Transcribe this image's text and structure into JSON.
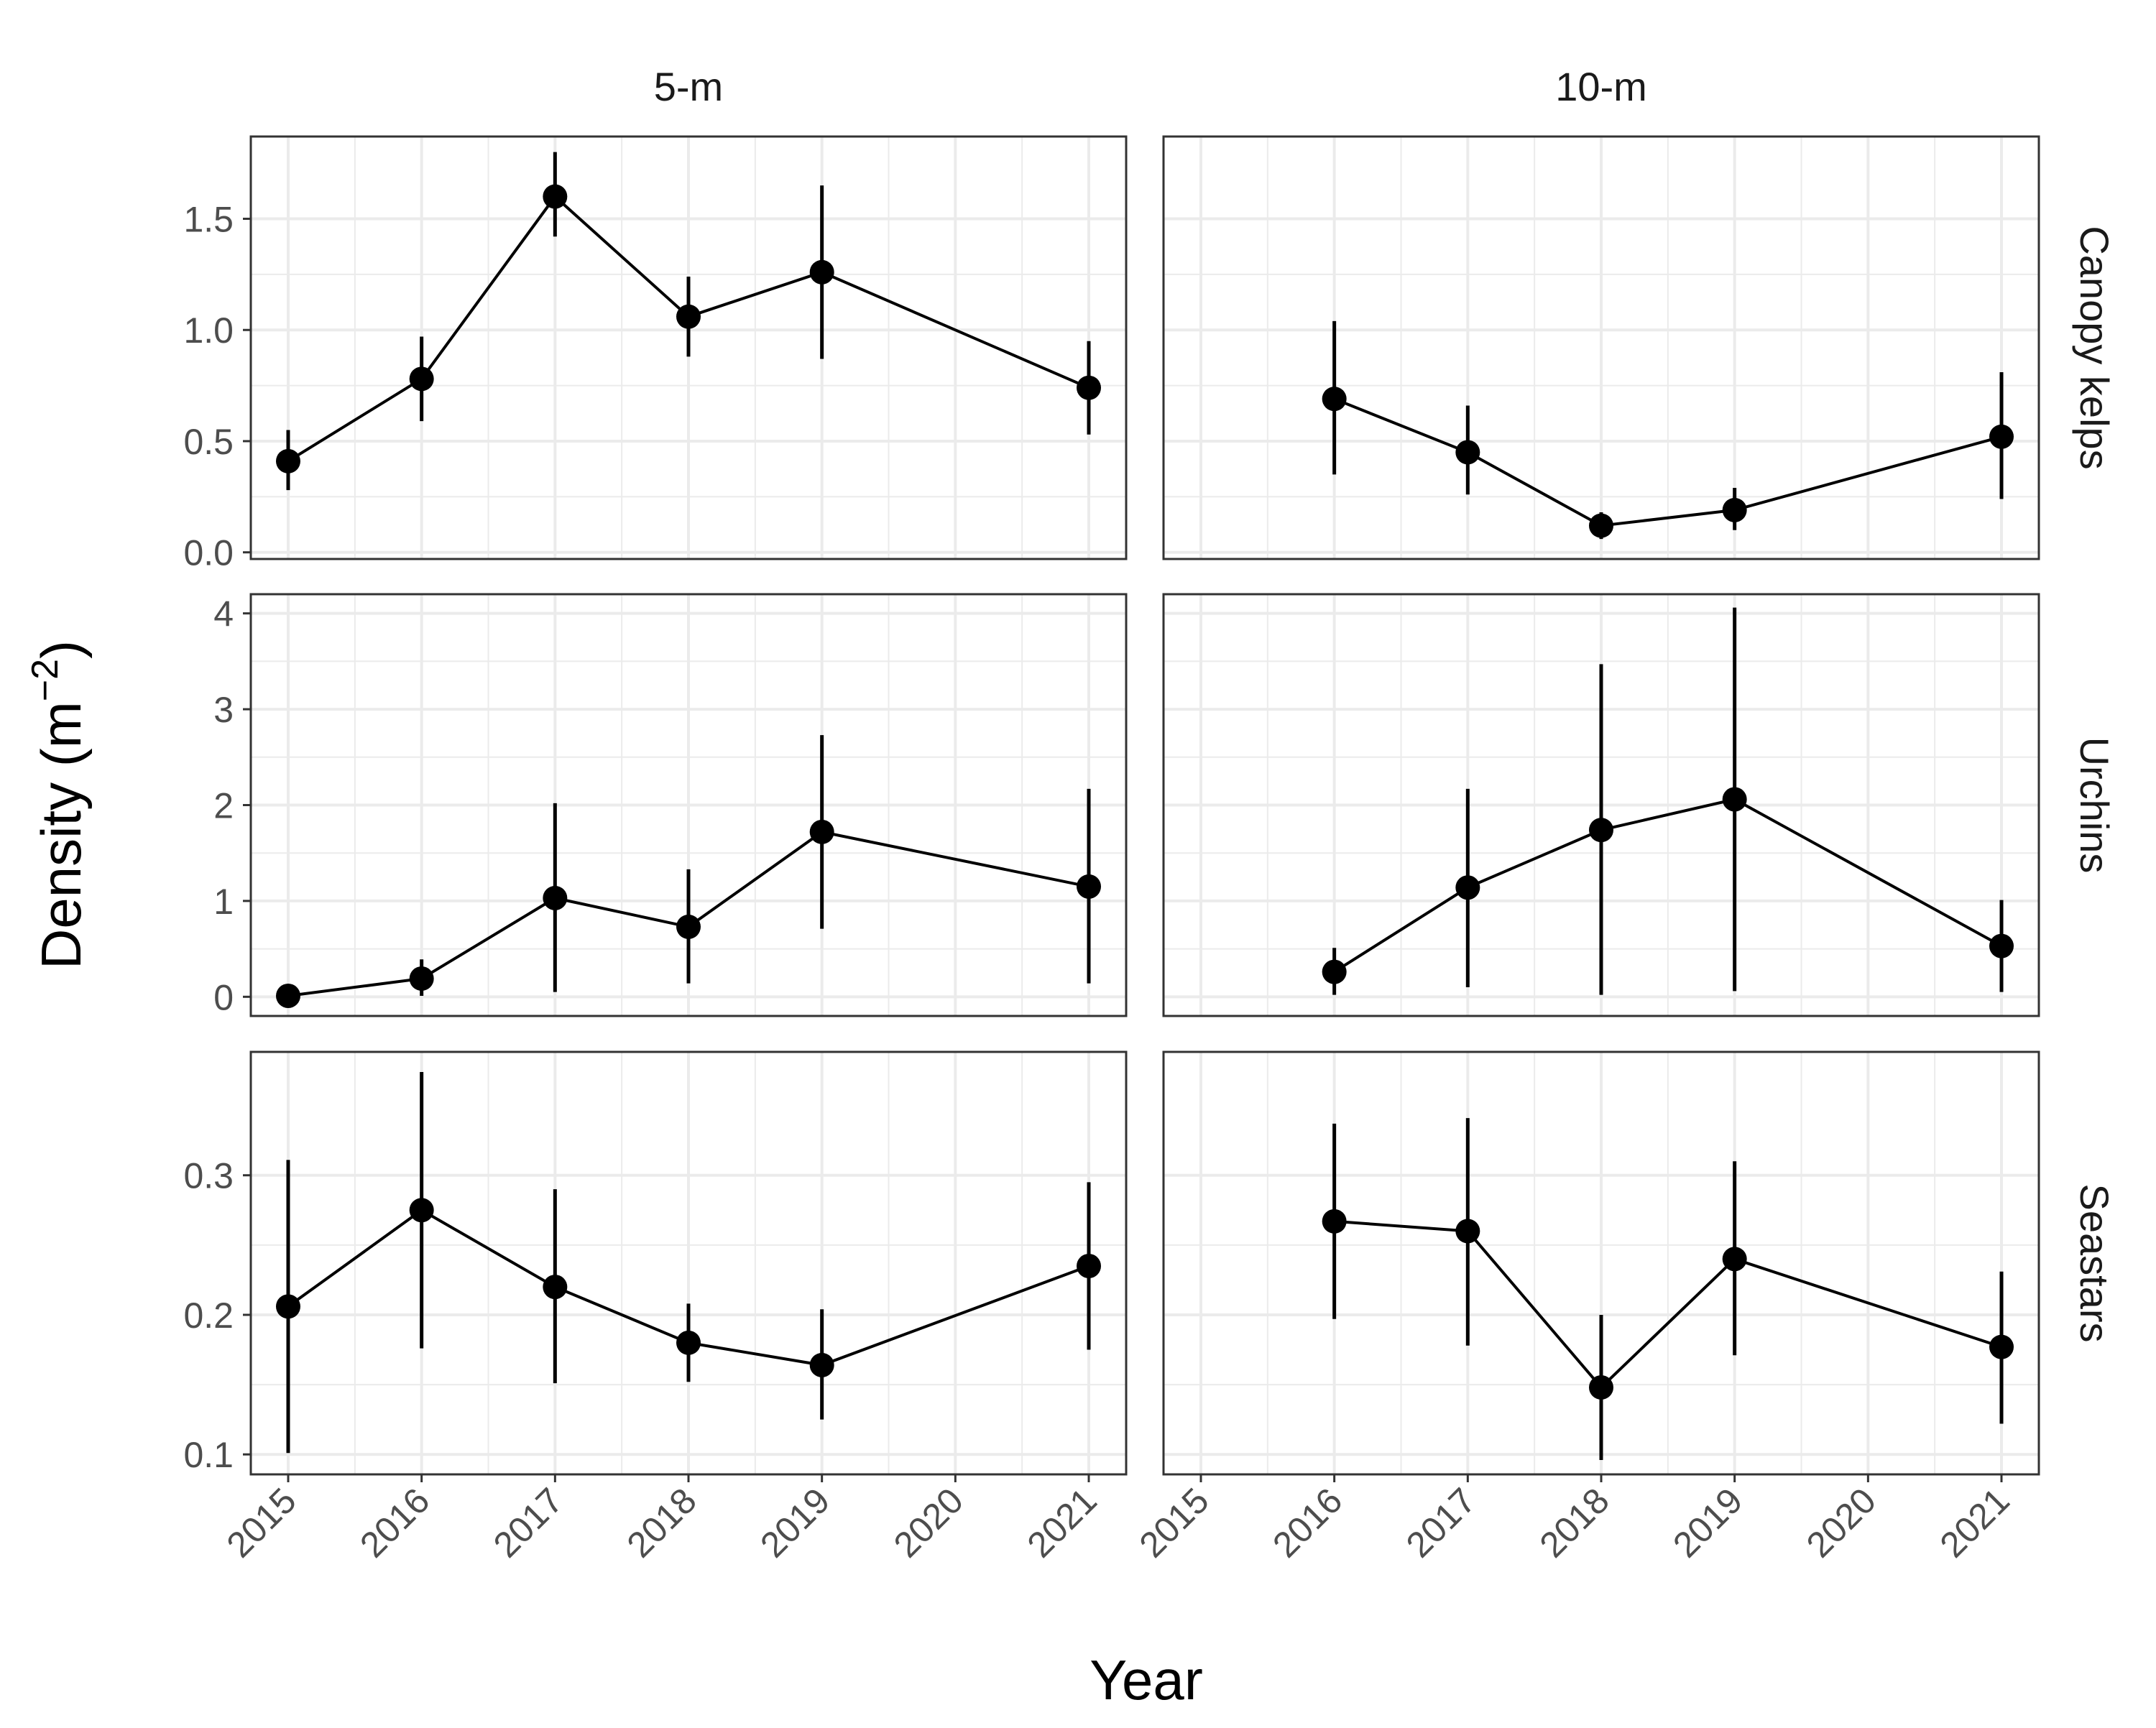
{
  "chart_data": {
    "type": "line",
    "xlabel": "Year",
    "ylabel": "Density (m",
    "ylabel_sup": "−2",
    "ylabel_close": ")",
    "x_ticks": [
      2015,
      2016,
      2017,
      2018,
      2019,
      2020,
      2021
    ],
    "xlim": [
      2014.72,
      2021.28
    ],
    "columns": [
      "5-m",
      "10-m"
    ],
    "rows": [
      {
        "name": "Canopy kelps",
        "ylim": [
          -0.03,
          1.87
        ],
        "y_ticks": [
          0.0,
          0.5,
          1.0,
          1.5
        ],
        "y_tick_labels": [
          "0.0",
          "0.5",
          "1.0",
          "1.5"
        ],
        "panels": [
          {
            "column": "5-m",
            "points": [
              {
                "x": 2015,
                "y": 0.41,
                "lo": 0.28,
                "hi": 0.55
              },
              {
                "x": 2016,
                "y": 0.78,
                "lo": 0.59,
                "hi": 0.97
              },
              {
                "x": 2017,
                "y": 1.6,
                "lo": 1.42,
                "hi": 1.8
              },
              {
                "x": 2018,
                "y": 1.06,
                "lo": 0.88,
                "hi": 1.24
              },
              {
                "x": 2019,
                "y": 1.26,
                "lo": 0.87,
                "hi": 1.65
              },
              {
                "x": 2021,
                "y": 0.74,
                "lo": 0.53,
                "hi": 0.95
              }
            ]
          },
          {
            "column": "10-m",
            "points": [
              {
                "x": 2016,
                "y": 0.69,
                "lo": 0.35,
                "hi": 1.04
              },
              {
                "x": 2017,
                "y": 0.45,
                "lo": 0.26,
                "hi": 0.66
              },
              {
                "x": 2018,
                "y": 0.12,
                "lo": 0.06,
                "hi": 0.18
              },
              {
                "x": 2019,
                "y": 0.19,
                "lo": 0.1,
                "hi": 0.29
              },
              {
                "x": 2021,
                "y": 0.52,
                "lo": 0.24,
                "hi": 0.81
              }
            ]
          }
        ]
      },
      {
        "name": "Urchins",
        "ylim": [
          -0.2,
          4.2
        ],
        "y_ticks": [
          0,
          1,
          2,
          3,
          4
        ],
        "y_tick_labels": [
          "0",
          "1",
          "2",
          "3",
          "4"
        ],
        "panels": [
          {
            "column": "5-m",
            "points": [
              {
                "x": 2015,
                "y": 0.01,
                "lo": 0.0,
                "hi": 0.02
              },
              {
                "x": 2016,
                "y": 0.19,
                "lo": 0.01,
                "hi": 0.39
              },
              {
                "x": 2017,
                "y": 1.03,
                "lo": 0.05,
                "hi": 2.02
              },
              {
                "x": 2018,
                "y": 0.73,
                "lo": 0.14,
                "hi": 1.33
              },
              {
                "x": 2019,
                "y": 1.72,
                "lo": 0.71,
                "hi": 2.73
              },
              {
                "x": 2021,
                "y": 1.15,
                "lo": 0.14,
                "hi": 2.17
              }
            ]
          },
          {
            "column": "10-m",
            "points": [
              {
                "x": 2016,
                "y": 0.26,
                "lo": 0.02,
                "hi": 0.51
              },
              {
                "x": 2017,
                "y": 1.14,
                "lo": 0.1,
                "hi": 2.17
              },
              {
                "x": 2018,
                "y": 1.74,
                "lo": 0.02,
                "hi": 3.47
              },
              {
                "x": 2019,
                "y": 2.06,
                "lo": 0.06,
                "hi": 4.06
              },
              {
                "x": 2021,
                "y": 0.53,
                "lo": 0.05,
                "hi": 1.01
              }
            ]
          }
        ]
      },
      {
        "name": "Seastars",
        "ylim": [
          0.0857,
          0.3884
        ],
        "y_ticks": [
          0.1,
          0.2,
          0.3
        ],
        "y_tick_labels": [
          "0.1",
          "0.2",
          "0.3"
        ],
        "panels": [
          {
            "column": "5-m",
            "points": [
              {
                "x": 2015,
                "y": 0.206,
                "lo": 0.101,
                "hi": 0.311
              },
              {
                "x": 2016,
                "y": 0.275,
                "lo": 0.176,
                "hi": 0.374
              },
              {
                "x": 2017,
                "y": 0.22,
                "lo": 0.151,
                "hi": 0.29
              },
              {
                "x": 2018,
                "y": 0.18,
                "lo": 0.152,
                "hi": 0.208
              },
              {
                "x": 2019,
                "y": 0.164,
                "lo": 0.125,
                "hi": 0.204
              },
              {
                "x": 2021,
                "y": 0.235,
                "lo": 0.175,
                "hi": 0.295
              }
            ]
          },
          {
            "column": "10-m",
            "points": [
              {
                "x": 2016,
                "y": 0.267,
                "lo": 0.197,
                "hi": 0.337
              },
              {
                "x": 2017,
                "y": 0.26,
                "lo": 0.178,
                "hi": 0.341
              },
              {
                "x": 2018,
                "y": 0.148,
                "lo": 0.096,
                "hi": 0.2
              },
              {
                "x": 2019,
                "y": 0.24,
                "lo": 0.171,
                "hi": 0.31
              },
              {
                "x": 2021,
                "y": 0.177,
                "lo": 0.122,
                "hi": 0.231
              }
            ]
          }
        ]
      }
    ]
  },
  "colors": {
    "series": "#000000",
    "grid": "#ebebeb",
    "panel_border": "#333333",
    "tick_label": "#4d4d4d"
  }
}
